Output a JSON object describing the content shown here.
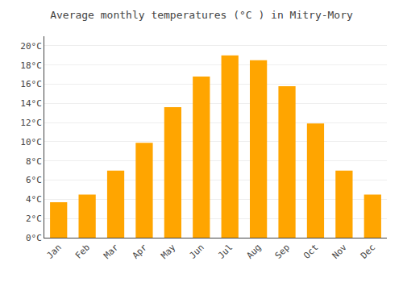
{
  "chart_data": {
    "type": "bar",
    "title": "Average monthly temperatures (°C ) in Mitry-Mory",
    "categories": [
      "Jan",
      "Feb",
      "Mar",
      "Apr",
      "May",
      "Jun",
      "Jul",
      "Aug",
      "Sep",
      "Oct",
      "Nov",
      "Dec"
    ],
    "values": [
      3.7,
      4.5,
      7.0,
      9.9,
      13.6,
      16.8,
      19.0,
      18.5,
      15.8,
      11.9,
      7.0,
      4.5
    ],
    "color": "#FFA500",
    "ylim": [
      0,
      21
    ],
    "yticks": [
      {
        "value": 0,
        "label": "0°C"
      },
      {
        "value": 2,
        "label": "2°C"
      },
      {
        "value": 4,
        "label": "4°C"
      },
      {
        "value": 6,
        "label": "6°C"
      },
      {
        "value": 8,
        "label": "8°C"
      },
      {
        "value": 10,
        "label": "10°C"
      },
      {
        "value": 12,
        "label": "12°C"
      },
      {
        "value": 14,
        "label": "14°C"
      },
      {
        "value": 16,
        "label": "16°C"
      },
      {
        "value": 18,
        "label": "18°C"
      },
      {
        "value": 20,
        "label": "20°C"
      }
    ],
    "grid": true
  }
}
